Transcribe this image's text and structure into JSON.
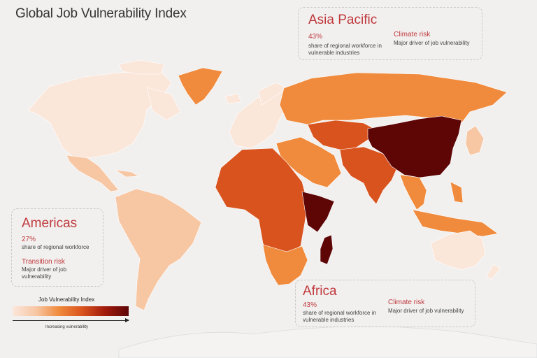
{
  "title": "Global Job Vulnerability Index",
  "colors": {
    "background": "#f1f0ef",
    "accent": "#c0393c",
    "scale": [
      "#fbe6da",
      "#f7c7a4",
      "#f08a3c",
      "#d9531e",
      "#9f1a0c",
      "#5e0506"
    ]
  },
  "cards": {
    "asia": {
      "region": "Asia Pacific",
      "pct": "43%",
      "desc": "share of regional workforce in vulnerable industries",
      "risk_title": "Climate risk",
      "risk_desc": "Major driver of job vulnerability"
    },
    "americas": {
      "region": "Americas",
      "pct": "27%",
      "desc": "share of regional workforce",
      "risk_title": "Transition risk",
      "risk_desc": "Major driver of job vulnerability"
    },
    "africa": {
      "region": "Africa",
      "pct": "43%",
      "desc": "share of regional workforce in vulnerable industries",
      "risk_title": "Climate risk",
      "risk_desc": "Major driver of job vulnerability"
    }
  },
  "legend": {
    "title": "Job Vulnerability Index",
    "subtitle": "Increasing vulnerability"
  },
  "regions_vulnerability": {
    "north-america": 1,
    "greenland": 3,
    "central-america": 2,
    "south-america": 2,
    "europe": 1,
    "russia": 3,
    "central-asia": 4,
    "middle-east": 3,
    "south-asia": 4,
    "china": 6,
    "southeast-asia": 3,
    "japan": 2,
    "africa": 4,
    "east-africa": 6,
    "southern-africa": 3,
    "madagascar": 6,
    "australia": 1
  }
}
